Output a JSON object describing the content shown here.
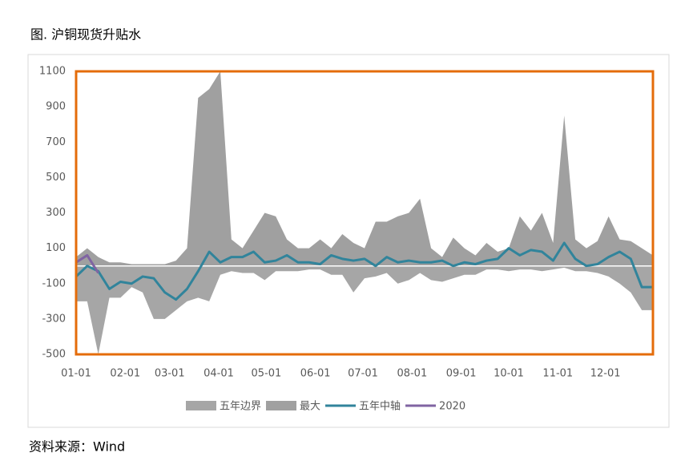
{
  "chart_data": {
    "type": "line",
    "title": "图. 沪铜现货升贴水",
    "source": "资料来源：Wind",
    "x": [
      1,
      8,
      15,
      22,
      29,
      36,
      43,
      50,
      57,
      64,
      71,
      78,
      85,
      92,
      99,
      106,
      113,
      120,
      127,
      134,
      141,
      148,
      155,
      162,
      169,
      176,
      183,
      190,
      197,
      204,
      211,
      218,
      225,
      232,
      239,
      246,
      253,
      260,
      267,
      274,
      281,
      288,
      295,
      302,
      309,
      316,
      323,
      330,
      337,
      344,
      351,
      358,
      365
    ],
    "xlim": [
      1,
      365
    ],
    "xticks": [
      {
        "value": 1,
        "label": "01-01"
      },
      {
        "value": 32,
        "label": "02-01"
      },
      {
        "value": 60,
        "label": "03-01"
      },
      {
        "value": 91,
        "label": "04-01"
      },
      {
        "value": 121,
        "label": "05-01"
      },
      {
        "value": 152,
        "label": "06-01"
      },
      {
        "value": 182,
        "label": "07-01"
      },
      {
        "value": 213,
        "label": "08-01"
      },
      {
        "value": 244,
        "label": "09-01"
      },
      {
        "value": 274,
        "label": "10-01"
      },
      {
        "value": 305,
        "label": "11-01"
      },
      {
        "value": 335,
        "label": "12-01"
      }
    ],
    "ylim": [
      -500,
      1100
    ],
    "yticks": [
      -500,
      -300,
      -100,
      100,
      300,
      500,
      700,
      900,
      1100
    ],
    "series": [
      {
        "name": "五年边界",
        "type": "area",
        "color": "#a6a6a6",
        "values": [
          -200,
          -200,
          -500,
          -180,
          -180,
          -120,
          -150,
          -300,
          -300,
          -250,
          -200,
          -180,
          -200,
          -50,
          -30,
          -40,
          -40,
          -80,
          -30,
          -30,
          -30,
          -20,
          -20,
          -50,
          -50,
          -150,
          -70,
          -60,
          -40,
          -100,
          -80,
          -40,
          -80,
          -90,
          -70,
          -50,
          -50,
          -20,
          -20,
          -30,
          -20,
          -20,
          -30,
          -20,
          -10,
          -30,
          -30,
          -40,
          -60,
          -100,
          -150,
          -250,
          -250
        ]
      },
      {
        "name": "最大",
        "type": "area",
        "color": "#a0a0a0",
        "values": [
          50,
          100,
          50,
          20,
          20,
          10,
          10,
          10,
          10,
          30,
          100,
          950,
          1000,
          1100,
          150,
          100,
          200,
          300,
          280,
          150,
          100,
          100,
          150,
          100,
          180,
          130,
          100,
          250,
          250,
          280,
          300,
          380,
          100,
          50,
          160,
          100,
          60,
          130,
          80,
          100,
          280,
          200,
          300,
          130,
          850,
          150,
          100,
          140,
          280,
          150,
          140,
          100,
          60
        ]
      },
      {
        "name": "五年中轴",
        "type": "line",
        "color": "#31849b",
        "values": [
          -60,
          0,
          -30,
          -130,
          -90,
          -100,
          -60,
          -70,
          -150,
          -190,
          -130,
          -30,
          80,
          20,
          50,
          50,
          80,
          20,
          30,
          60,
          20,
          20,
          10,
          60,
          40,
          30,
          40,
          0,
          50,
          20,
          30,
          20,
          20,
          30,
          0,
          20,
          10,
          30,
          40,
          100,
          60,
          90,
          80,
          30,
          130,
          40,
          0,
          10,
          50,
          80,
          40,
          -120,
          -120
        ]
      },
      {
        "name": "2020",
        "type": "line",
        "color": "#8064a2",
        "values": [
          20,
          60,
          -40,
          null,
          null,
          null,
          null,
          null,
          null,
          null,
          null,
          null,
          null,
          null,
          null,
          null,
          null,
          null,
          null,
          null,
          null,
          null,
          null,
          null,
          null,
          null,
          null,
          null,
          null,
          null,
          null,
          null,
          null,
          null,
          null,
          null,
          null,
          null,
          null,
          null,
          null,
          null,
          null,
          null,
          null,
          null,
          null,
          null,
          null,
          null,
          null,
          null,
          null
        ]
      }
    ]
  }
}
